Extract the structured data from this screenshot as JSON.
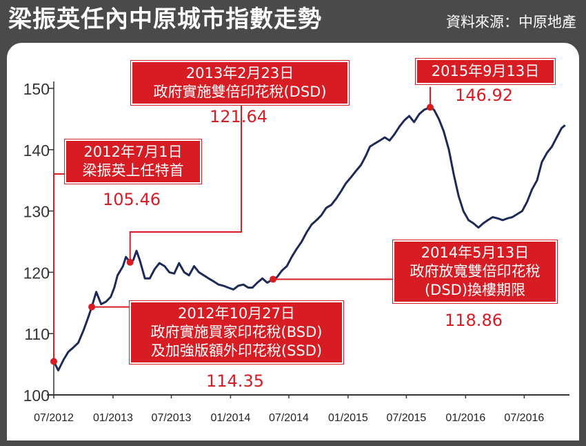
{
  "title": "梁振英任內中原城市指數走勢",
  "source": "資料來源：中原地產",
  "chart_data": {
    "type": "line",
    "title": "梁振英任內中原城市指數走勢",
    "ylim": [
      100,
      150
    ],
    "yticks": [
      100,
      110,
      120,
      130,
      140,
      150
    ],
    "xlim": [
      "2012-07",
      "2016-11"
    ],
    "xticks": [
      "07/2012",
      "01/2013",
      "07/2013",
      "01/2014",
      "07/2014",
      "01/2015",
      "07/2015",
      "01/2016",
      "07/2016"
    ],
    "series": [
      {
        "x": [
          "2012-07-01",
          "2012-07-15",
          "2012-08-01",
          "2012-08-15",
          "2012-09-01",
          "2012-09-15",
          "2012-10-01",
          "2012-10-15",
          "2012-10-27",
          "2012-11-10",
          "2012-11-25",
          "2012-12-10",
          "2012-12-25",
          "2013-01-05",
          "2013-01-15",
          "2013-02-01",
          "2013-02-10",
          "2013-02-23",
          "2013-03-05",
          "2013-03-15",
          "2013-03-25",
          "2013-04-10",
          "2013-04-25",
          "2013-05-10",
          "2013-05-25",
          "2013-06-10",
          "2013-06-25",
          "2013-07-10",
          "2013-07-25",
          "2013-08-10",
          "2013-08-25",
          "2013-09-10",
          "2013-09-25",
          "2013-10-10",
          "2013-10-25",
          "2013-11-10",
          "2013-11-25",
          "2013-12-10",
          "2013-12-25",
          "2014-01-10",
          "2014-01-25",
          "2014-02-10",
          "2014-02-25",
          "2014-03-10",
          "2014-03-25",
          "2014-04-10",
          "2014-04-25",
          "2014-05-13",
          "2014-05-25",
          "2014-06-10",
          "2014-06-25",
          "2014-07-10",
          "2014-07-25",
          "2014-08-10",
          "2014-08-25",
          "2014-09-10",
          "2014-09-25",
          "2014-10-10",
          "2014-10-25",
          "2014-11-10",
          "2014-11-25",
          "2014-12-10",
          "2014-12-25",
          "2015-01-10",
          "2015-01-25",
          "2015-02-10",
          "2015-02-25",
          "2015-03-10",
          "2015-03-25",
          "2015-04-10",
          "2015-04-25",
          "2015-05-10",
          "2015-05-25",
          "2015-06-10",
          "2015-06-25",
          "2015-07-10",
          "2015-07-25",
          "2015-08-10",
          "2015-08-25",
          "2015-09-13",
          "2015-09-25",
          "2015-10-10",
          "2015-10-25",
          "2015-11-10",
          "2015-11-25",
          "2015-12-10",
          "2015-12-25",
          "2016-01-10",
          "2016-01-25",
          "2016-02-10",
          "2016-02-25",
          "2016-03-10",
          "2016-03-25",
          "2016-04-10",
          "2016-04-25",
          "2016-05-10",
          "2016-05-25",
          "2016-06-10",
          "2016-06-25",
          "2016-07-10",
          "2016-07-25",
          "2016-08-10",
          "2016-08-25",
          "2016-09-10",
          "2016-09-25",
          "2016-10-10",
          "2016-10-25",
          "2016-11-05"
        ],
        "y": [
          105.46,
          104.0,
          105.8,
          107.0,
          107.8,
          108.5,
          110.5,
          112.5,
          114.35,
          116.8,
          114.8,
          115.2,
          116.0,
          117.5,
          119.5,
          121.0,
          122.5,
          121.64,
          122.0,
          123.5,
          122.0,
          119.0,
          119.0,
          120.5,
          121.5,
          121.0,
          120.0,
          119.8,
          121.5,
          120.0,
          119.5,
          121.0,
          120.0,
          119.5,
          119.0,
          118.5,
          118.0,
          117.8,
          117.5,
          117.2,
          117.8,
          118.0,
          117.5,
          117.5,
          118.3,
          119.0,
          118.3,
          118.86,
          119.2,
          120.3,
          121.0,
          122.5,
          123.8,
          125.0,
          126.5,
          127.8,
          128.5,
          129.3,
          130.5,
          131.0,
          132.0,
          133.2,
          134.5,
          135.5,
          136.5,
          137.5,
          139.0,
          140.5,
          141.0,
          141.5,
          142.0,
          141.5,
          142.5,
          143.8,
          144.8,
          145.5,
          144.5,
          145.8,
          146.5,
          146.92,
          146.5,
          145.0,
          143.0,
          140.0,
          136.0,
          132.5,
          130.0,
          128.5,
          128.0,
          127.3,
          128.0,
          128.5,
          129.0,
          128.8,
          128.5,
          128.8,
          129.0,
          129.5,
          130.0,
          131.5,
          133.5,
          135.0,
          138.0,
          139.5,
          140.5,
          142.0,
          143.5,
          144.0
        ]
      }
    ]
  },
  "annotations": [
    {
      "lines": [
        "2012年7月1日",
        "梁振英上任特首"
      ],
      "value": "105.46"
    },
    {
      "lines": [
        "2012年10月27日",
        "政府實施買家印花稅(BSD)",
        "及加強版額外印花稅(SSD)"
      ],
      "value": "114.35"
    },
    {
      "lines": [
        "2013年2月23日",
        "政府實施雙倍印花稅(DSD)"
      ],
      "value": "121.64"
    },
    {
      "lines": [
        "2014年5月13日",
        "政府放寬雙倍印花稅",
        "(DSD)換樓期限"
      ],
      "value": "118.86"
    },
    {
      "lines": [
        "2015年9月13日"
      ],
      "value": "146.92"
    }
  ],
  "colors": {
    "line": "#1c2a55",
    "accent": "#d71c24",
    "frame": "#4a4a4a"
  }
}
